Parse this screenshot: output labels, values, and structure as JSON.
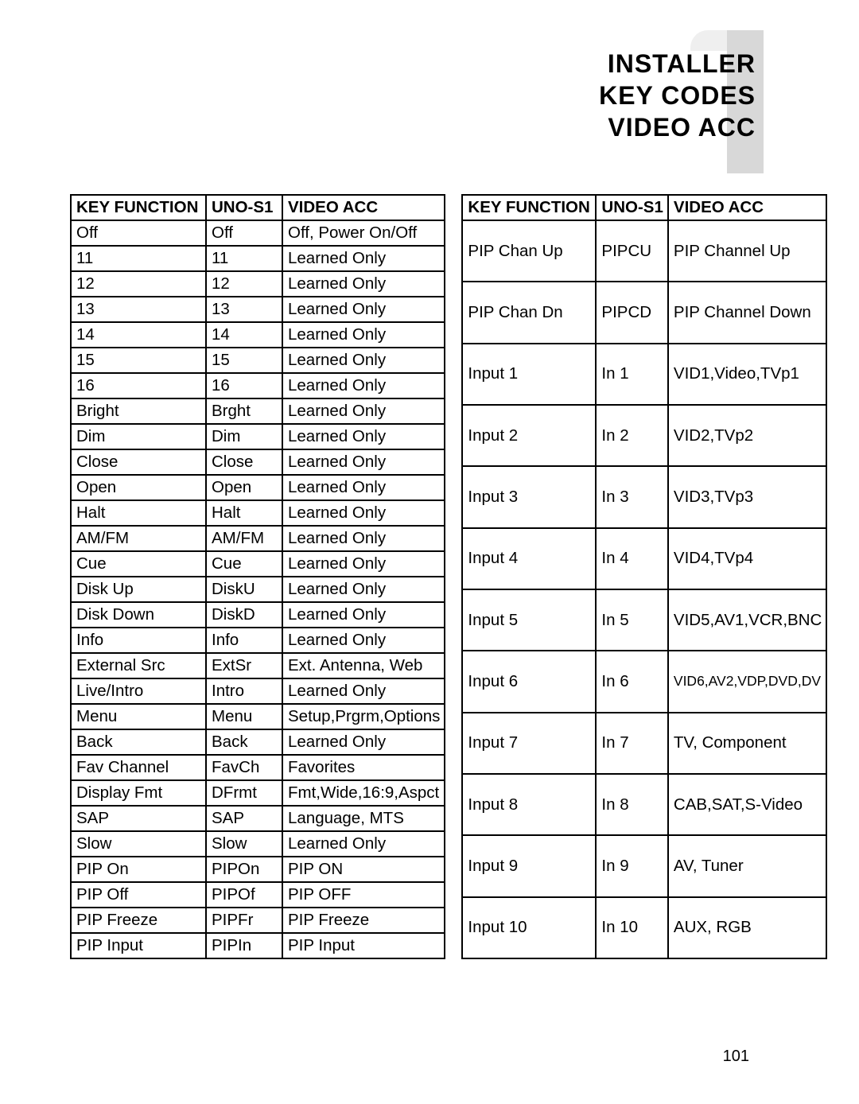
{
  "header": {
    "line1": "INSTALLER",
    "line2": "KEY CODES",
    "line3": "VIDEO ACC"
  },
  "page_number": "101",
  "columns": [
    "KEY FUNCTION",
    "UNO-S1",
    "VIDEO ACC"
  ],
  "left_table": {
    "rows": [
      [
        "Off",
        "Off",
        "Off, Power On/Off"
      ],
      [
        "11",
        "11",
        "Learned Only"
      ],
      [
        "12",
        "12",
        "Learned Only"
      ],
      [
        "13",
        "13",
        "Learned Only"
      ],
      [
        "14",
        "14",
        "Learned Only"
      ],
      [
        "15",
        "15",
        "Learned Only"
      ],
      [
        "16",
        "16",
        "Learned Only"
      ],
      [
        "Bright",
        "Brght",
        "Learned Only"
      ],
      [
        "Dim",
        "Dim",
        "Learned Only"
      ],
      [
        "Close",
        "Close",
        "Learned Only"
      ],
      [
        "Open",
        "Open",
        "Learned Only"
      ],
      [
        "Halt",
        "Halt",
        "Learned Only"
      ],
      [
        "AM/FM",
        "AM/FM",
        "Learned Only"
      ],
      [
        "Cue",
        "Cue",
        "Learned Only"
      ],
      [
        "Disk Up",
        "DiskU",
        "Learned Only"
      ],
      [
        "Disk Down",
        "DiskD",
        "Learned Only"
      ],
      [
        "Info",
        "Info",
        "Learned Only"
      ],
      [
        "External Src",
        "ExtSr",
        "Ext. Antenna, Web"
      ],
      [
        "Live/Intro",
        "Intro",
        "Learned Only"
      ],
      [
        "Menu",
        "Menu",
        "Setup,Prgrm,Options"
      ],
      [
        "Back",
        "Back",
        "Learned Only"
      ],
      [
        "Fav Channel",
        "FavCh",
        "Favorites"
      ],
      [
        "Display Fmt",
        "DFrmt",
        "Fmt,Wide,16:9,Aspct"
      ],
      [
        "SAP",
        "SAP",
        "Language, MTS"
      ],
      [
        "Slow",
        "Slow",
        "Learned Only"
      ],
      [
        "PIP On",
        "PIPOn",
        "PIP ON"
      ],
      [
        "PIP Off",
        "PIPOf",
        "PIP OFF"
      ],
      [
        "PIP Freeze",
        "PIPFr",
        "PIP Freeze"
      ],
      [
        "PIP Input",
        "PIPIn",
        "PIP Input"
      ]
    ]
  },
  "right_table": {
    "rows": [
      [
        "PIP Chan Up",
        "PIPCU",
        "PIP Channel Up"
      ],
      [
        "PIP Chan Dn",
        "PIPCD",
        "PIP Channel Down"
      ],
      [
        "Input 1",
        "In 1",
        "VID1,Video,TVp1"
      ],
      [
        "Input 2",
        "In 2",
        "VID2,TVp2"
      ],
      [
        "Input 3",
        "In 3",
        "VID3,TVp3"
      ],
      [
        "Input 4",
        "In 4",
        "VID4,TVp4"
      ],
      [
        "Input 5",
        "In 5",
        "VID5,AV1,VCR,BNC"
      ],
      [
        "Input 6",
        "In 6",
        "VID6,AV2,VDP,DVD,DV"
      ],
      [
        "Input 7",
        "In 7",
        "TV, Component"
      ],
      [
        "Input 8",
        "In 8",
        "CAB,SAT,S-Video"
      ],
      [
        "Input 9",
        "In 9",
        "AV, Tuner"
      ],
      [
        "Input 10",
        "In 10",
        "AUX, RGB"
      ]
    ]
  },
  "style": {
    "body_bg": "#ffffff",
    "text_color": "#000000",
    "border_color": "#000000",
    "accent_dark": "#d8d8d8",
    "accent_light": "#efefef",
    "header_fontsize": 32,
    "cell_fontsize": 20.5,
    "pagenum_fontsize": 20,
    "shrink_row_index": 7
  }
}
